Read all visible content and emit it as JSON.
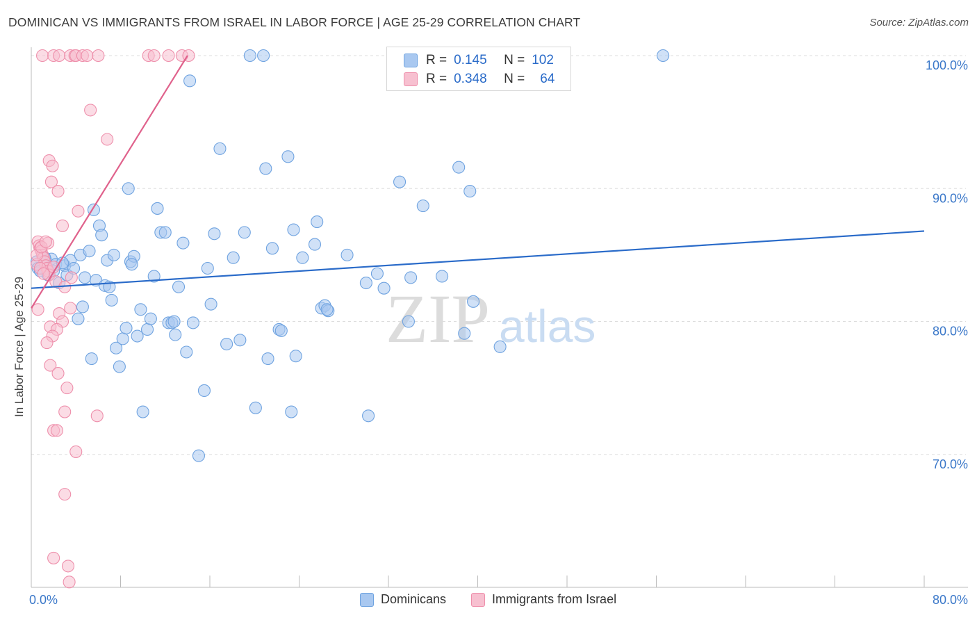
{
  "chart_data": {
    "type": "scatter",
    "title": "DOMINICAN VS IMMIGRANTS FROM ISRAEL IN LABOR FORCE | AGE 25-29 CORRELATION CHART",
    "source": "Source: ZipAtlas.com",
    "ylabel": "In Labor Force | Age 25-29",
    "xlabel": "",
    "xlim": [
      0,
      80
    ],
    "ylim": [
      60,
      100
    ],
    "x_tick_labels": [
      "0.0%",
      "80.0%"
    ],
    "y_tick_labels": [
      "100.0%",
      "90.0%",
      "80.0%",
      "70.0%"
    ],
    "y_ticks": [
      100,
      90,
      80,
      70
    ],
    "watermark": "ZIPatlas",
    "legend": {
      "rows": [
        {
          "r_label": "R =",
          "r_value": "0.145",
          "n_label": "N =",
          "n_value": "102"
        },
        {
          "r_label": "R =",
          "r_value": "0.348",
          "n_label": "N =",
          "n_value": "64"
        }
      ]
    },
    "series": [
      {
        "name": "Dominicans",
        "color": "#6fa3e0",
        "fill": "#a9c8f0",
        "line_color": "#2a6bc9",
        "trend": {
          "x0": 0,
          "y0": 82.5,
          "x1": 80,
          "y1": 86.8
        },
        "points": [
          [
            0.5,
            84.5
          ],
          [
            0.6,
            84.0
          ],
          [
            0.8,
            83.8
          ],
          [
            1.0,
            85.0
          ],
          [
            1.3,
            84.6
          ],
          [
            1.5,
            83.5
          ],
          [
            1.8,
            84.7
          ],
          [
            2.0,
            83.8
          ],
          [
            2.2,
            84.3
          ],
          [
            2.5,
            82.9
          ],
          [
            3.0,
            84.2
          ],
          [
            3.2,
            83.5
          ],
          [
            3.5,
            84.6
          ],
          [
            3.8,
            84.0
          ],
          [
            4.2,
            80.2
          ],
          [
            4.4,
            85.0
          ],
          [
            4.6,
            81.1
          ],
          [
            4.8,
            83.3
          ],
          [
            5.2,
            85.3
          ],
          [
            5.4,
            77.2
          ],
          [
            5.6,
            88.4
          ],
          [
            5.8,
            83.1
          ],
          [
            6.1,
            87.2
          ],
          [
            6.3,
            86.5
          ],
          [
            6.6,
            82.7
          ],
          [
            6.8,
            84.6
          ],
          [
            7.0,
            82.6
          ],
          [
            7.2,
            81.6
          ],
          [
            7.4,
            85.0
          ],
          [
            7.6,
            78.0
          ],
          [
            7.9,
            76.6
          ],
          [
            8.2,
            78.7
          ],
          [
            8.5,
            79.5
          ],
          [
            8.7,
            90.0
          ],
          [
            8.9,
            84.5
          ],
          [
            9.2,
            84.9
          ],
          [
            9.5,
            78.9
          ],
          [
            9.8,
            80.9
          ],
          [
            10.0,
            73.2
          ],
          [
            10.4,
            79.4
          ],
          [
            10.7,
            80.2
          ],
          [
            11.0,
            83.4
          ],
          [
            11.3,
            88.5
          ],
          [
            11.6,
            86.7
          ],
          [
            12.0,
            86.7
          ],
          [
            12.3,
            79.9
          ],
          [
            12.6,
            79.9
          ],
          [
            12.9,
            79.0
          ],
          [
            13.2,
            82.6
          ],
          [
            13.6,
            85.9
          ],
          [
            13.9,
            77.7
          ],
          [
            14.2,
            98.1
          ],
          [
            14.5,
            79.9
          ],
          [
            15.0,
            69.9
          ],
          [
            15.5,
            74.8
          ],
          [
            15.8,
            84.0
          ],
          [
            16.1,
            81.3
          ],
          [
            16.4,
            86.6
          ],
          [
            16.9,
            93.0
          ],
          [
            17.5,
            78.3
          ],
          [
            18.1,
            84.8
          ],
          [
            18.7,
            78.6
          ],
          [
            19.1,
            86.7
          ],
          [
            19.6,
            100.0
          ],
          [
            20.1,
            73.5
          ],
          [
            21.0,
            91.5
          ],
          [
            21.2,
            77.2
          ],
          [
            21.6,
            85.5
          ],
          [
            22.2,
            79.4
          ],
          [
            22.4,
            79.3
          ],
          [
            23.0,
            92.4
          ],
          [
            23.3,
            73.2
          ],
          [
            23.5,
            86.9
          ],
          [
            23.7,
            77.4
          ],
          [
            24.3,
            84.8
          ],
          [
            25.4,
            85.8
          ],
          [
            25.6,
            87.5
          ],
          [
            26.0,
            81.0
          ],
          [
            26.3,
            81.2
          ],
          [
            26.6,
            80.8
          ],
          [
            28.3,
            85.0
          ],
          [
            30.0,
            82.9
          ],
          [
            30.2,
            72.9
          ],
          [
            31.0,
            83.6
          ],
          [
            31.6,
            82.5
          ],
          [
            33.0,
            90.5
          ],
          [
            33.8,
            80.0
          ],
          [
            34.0,
            83.3
          ],
          [
            35.1,
            88.7
          ],
          [
            36.8,
            83.4
          ],
          [
            38.3,
            91.6
          ],
          [
            38.8,
            79.1
          ],
          [
            39.3,
            89.8
          ],
          [
            39.6,
            81.5
          ],
          [
            42.0,
            78.1
          ],
          [
            56.6,
            100.0
          ],
          [
            1.2,
            84.8
          ],
          [
            2.8,
            84.4
          ],
          [
            9.0,
            84.3
          ],
          [
            12.8,
            80.0
          ],
          [
            20.8,
            100.0
          ],
          [
            26.5,
            80.9
          ]
        ]
      },
      {
        "name": "Immigrants from Israel",
        "color": "#ee8fab",
        "fill": "#f7c0d0",
        "line_color": "#e0628c",
        "trend": {
          "x0": 0,
          "y0": 81.0,
          "x1": 14,
          "y1": 100.0
        },
        "points": [
          [
            1.0,
            100.0
          ],
          [
            2.0,
            100.0
          ],
          [
            2.5,
            100.0
          ],
          [
            3.5,
            100.0
          ],
          [
            3.9,
            100.0
          ],
          [
            4.0,
            100.0
          ],
          [
            4.6,
            100.0
          ],
          [
            5.0,
            100.0
          ],
          [
            6.0,
            100.0
          ],
          [
            10.5,
            100.0
          ],
          [
            11.0,
            100.0
          ],
          [
            12.3,
            100.0
          ],
          [
            13.5,
            100.0
          ],
          [
            14.1,
            100.0
          ],
          [
            5.3,
            95.9
          ],
          [
            6.8,
            93.7
          ],
          [
            1.6,
            92.1
          ],
          [
            1.9,
            91.7
          ],
          [
            1.8,
            90.5
          ],
          [
            2.4,
            89.8
          ],
          [
            4.2,
            88.3
          ],
          [
            2.8,
            87.2
          ],
          [
            0.6,
            86.0
          ],
          [
            0.7,
            85.7
          ],
          [
            0.8,
            85.5
          ],
          [
            0.9,
            85.3
          ],
          [
            1.0,
            85.0
          ],
          [
            1.1,
            84.8
          ],
          [
            1.2,
            84.5
          ],
          [
            1.3,
            84.2
          ],
          [
            1.4,
            84.0
          ],
          [
            1.5,
            83.8
          ],
          [
            1.6,
            83.5
          ],
          [
            2.2,
            83.0
          ],
          [
            3.0,
            82.6
          ],
          [
            0.6,
            80.9
          ],
          [
            2.5,
            80.6
          ],
          [
            2.8,
            80.0
          ],
          [
            3.5,
            81.0
          ],
          [
            1.7,
            79.6
          ],
          [
            2.3,
            79.4
          ],
          [
            1.9,
            78.9
          ],
          [
            1.4,
            78.4
          ],
          [
            1.7,
            76.7
          ],
          [
            2.4,
            76.1
          ],
          [
            3.2,
            75.0
          ],
          [
            3.0,
            73.2
          ],
          [
            5.9,
            72.9
          ],
          [
            2.0,
            71.8
          ],
          [
            2.3,
            71.8
          ],
          [
            4.0,
            70.2
          ],
          [
            3.0,
            67.0
          ],
          [
            2.0,
            62.2
          ],
          [
            3.3,
            61.6
          ],
          [
            3.4,
            60.4
          ],
          [
            0.5,
            84.3
          ],
          [
            0.8,
            84.0
          ],
          [
            1.1,
            83.6
          ],
          [
            2.0,
            84.1
          ],
          [
            3.6,
            83.3
          ],
          [
            0.5,
            85.0
          ],
          [
            1.5,
            85.9
          ],
          [
            0.9,
            85.6
          ],
          [
            1.3,
            86.0
          ]
        ]
      }
    ]
  }
}
